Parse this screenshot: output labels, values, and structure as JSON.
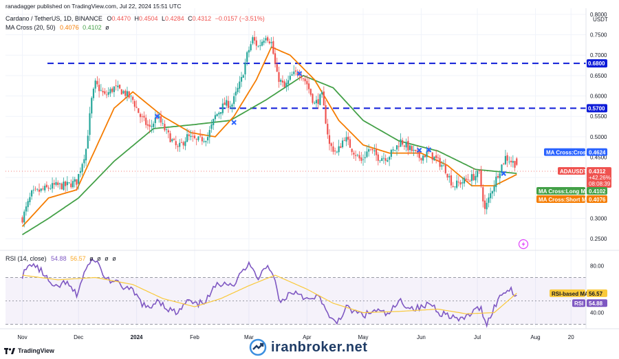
{
  "header": {
    "published": "ranadagger published on TradingView.com, Jul 22, 2024 15:51 UTC",
    "symbol_line": "Cardano / TetherUS, 1D, BINANCE",
    "ohlc": {
      "O": "0.4470",
      "H": "0.4504",
      "L": "0.4284",
      "C": "0.4312",
      "chg": "−0.0157 (−3.51%)"
    },
    "ohlc_labels": {
      "O": "O",
      "H": "H",
      "L": "L",
      "C": "C"
    },
    "indicator": "MA Cross (20, 50)",
    "indicator_values": [
      "0.4076",
      "0.4102",
      "ø"
    ]
  },
  "rsi_header": {
    "label": "RSI (14, close)",
    "values": [
      "54.88",
      "56.57",
      "ø",
      "ø",
      "ø",
      "ø"
    ]
  },
  "currency": "USDT",
  "labels": {
    "ma_cross": "MA Cross:Cross",
    "ma_cross_value": "0.4624",
    "symbol": "ADAUSDT",
    "last_price": "0.4312",
    "last_change": "+42.26%",
    "countdown": "08:08:39",
    "ma_long": "MA Cross:Long MA",
    "ma_long_value": "0.4102",
    "ma_short": "MA Cross:Short MA",
    "ma_short_value": "0.4076",
    "rsi_ma": "RSI-based MA",
    "rsi_ma_value": "56.57",
    "rsi": "RSI",
    "rsi_value": "54.88"
  },
  "levels": {
    "upper": "0.6800",
    "lower": "0.5700"
  },
  "watermark": "iranbroker.net",
  "footer": "TradingView",
  "colors": {
    "up": "#26a69a",
    "down": "#ef5350",
    "short_ma": "#f57c00",
    "long_ma": "#43a047",
    "cross": "#2962ff",
    "level": "#0d1bd8",
    "rsi": "#7e57c2",
    "rsi_ma": "#f9c93a"
  },
  "chart_data": {
    "type": "candlestick",
    "interval": "1D",
    "price_axis": {
      "ticks": [
        "0.2500",
        "0.3000",
        "0.3500",
        "0.4000",
        "0.4500",
        "0.5000",
        "0.5500",
        "0.6000",
        "0.6500",
        "0.7000",
        "0.7500",
        "0.8000"
      ],
      "range": [
        0.225,
        0.815
      ],
      "scale": "linear"
    },
    "time_axis": {
      "ticks": [
        "Nov",
        "Dec",
        "2024",
        "Feb",
        "Mar",
        "Apr",
        "May",
        "Jun",
        "Jul",
        "Aug",
        "20"
      ]
    },
    "close_anchors": [
      [
        "2023-11-01",
        0.3
      ],
      [
        "2023-11-06",
        0.36
      ],
      [
        "2023-11-12",
        0.37
      ],
      [
        "2023-11-18",
        0.38
      ],
      [
        "2023-11-24",
        0.38
      ],
      [
        "2023-11-30",
        0.39
      ],
      [
        "2023-12-05",
        0.47
      ],
      [
        "2023-12-08",
        0.59
      ],
      [
        "2023-12-10",
        0.63
      ],
      [
        "2023-12-15",
        0.6
      ],
      [
        "2023-12-20",
        0.62
      ],
      [
        "2023-12-25",
        0.61
      ],
      [
        "2023-12-30",
        0.59
      ],
      [
        "2024-01-03",
        0.55
      ],
      [
        "2024-01-08",
        0.52
      ],
      [
        "2024-01-12",
        0.55
      ],
      [
        "2024-01-17",
        0.51
      ],
      [
        "2024-01-23",
        0.47
      ],
      [
        "2024-01-28",
        0.5
      ],
      [
        "2024-02-02",
        0.49
      ],
      [
        "2024-02-08",
        0.5
      ],
      [
        "2024-02-12",
        0.55
      ],
      [
        "2024-02-17",
        0.58
      ],
      [
        "2024-02-21",
        0.58
      ],
      [
        "2024-02-26",
        0.64
      ],
      [
        "2024-02-29",
        0.7
      ],
      [
        "2024-03-03",
        0.74
      ],
      [
        "2024-03-06",
        0.72
      ],
      [
        "2024-03-10",
        0.75
      ],
      [
        "2024-03-13",
        0.73
      ],
      [
        "2024-03-16",
        0.65
      ],
      [
        "2024-03-20",
        0.62
      ],
      [
        "2024-03-24",
        0.65
      ],
      [
        "2024-03-28",
        0.66
      ],
      [
        "2024-04-01",
        0.63
      ],
      [
        "2024-04-05",
        0.58
      ],
      [
        "2024-04-09",
        0.6
      ],
      [
        "2024-04-13",
        0.48
      ],
      [
        "2024-04-17",
        0.46
      ],
      [
        "2024-04-21",
        0.5
      ],
      [
        "2024-04-25",
        0.47
      ],
      [
        "2024-04-30",
        0.44
      ],
      [
        "2024-05-04",
        0.47
      ],
      [
        "2024-05-09",
        0.45
      ],
      [
        "2024-05-14",
        0.45
      ],
      [
        "2024-05-18",
        0.47
      ],
      [
        "2024-05-21",
        0.49
      ],
      [
        "2024-05-26",
        0.47
      ],
      [
        "2024-05-31",
        0.45
      ],
      [
        "2024-06-05",
        0.46
      ],
      [
        "2024-06-10",
        0.44
      ],
      [
        "2024-06-14",
        0.42
      ],
      [
        "2024-06-18",
        0.38
      ],
      [
        "2024-06-23",
        0.39
      ],
      [
        "2024-06-28",
        0.4
      ],
      [
        "2024-07-02",
        0.41
      ],
      [
        "2024-07-05",
        0.32
      ],
      [
        "2024-07-08",
        0.36
      ],
      [
        "2024-07-12",
        0.41
      ],
      [
        "2024-07-16",
        0.45
      ],
      [
        "2024-07-19",
        0.44
      ],
      [
        "2024-07-22",
        0.4312
      ]
    ],
    "short_ma_anchors": [
      [
        "2023-11-01",
        0.28
      ],
      [
        "2023-11-15",
        0.35
      ],
      [
        "2023-11-30",
        0.37
      ],
      [
        "2023-12-10",
        0.47
      ],
      [
        "2023-12-20",
        0.57
      ],
      [
        "2023-12-30",
        0.61
      ],
      [
        "2024-01-15",
        0.55
      ],
      [
        "2024-01-30",
        0.51
      ],
      [
        "2024-02-12",
        0.5
      ],
      [
        "2024-02-22",
        0.55
      ],
      [
        "2024-03-05",
        0.64
      ],
      [
        "2024-03-13",
        0.72
      ],
      [
        "2024-03-23",
        0.7
      ],
      [
        "2024-04-05",
        0.64
      ],
      [
        "2024-04-18",
        0.54
      ],
      [
        "2024-05-01",
        0.48
      ],
      [
        "2024-05-15",
        0.46
      ],
      [
        "2024-06-01",
        0.46
      ],
      [
        "2024-06-15",
        0.43
      ],
      [
        "2024-06-28",
        0.38
      ],
      [
        "2024-07-10",
        0.38
      ],
      [
        "2024-07-22",
        0.4076
      ]
    ],
    "long_ma_anchors": [
      [
        "2023-11-01",
        0.26
      ],
      [
        "2023-11-15",
        0.3
      ],
      [
        "2023-12-01",
        0.35
      ],
      [
        "2023-12-20",
        0.44
      ],
      [
        "2024-01-10",
        0.52
      ],
      [
        "2024-02-01",
        0.53
      ],
      [
        "2024-02-20",
        0.54
      ],
      [
        "2024-03-10",
        0.59
      ],
      [
        "2024-03-30",
        0.65
      ],
      [
        "2024-04-15",
        0.62
      ],
      [
        "2024-05-01",
        0.54
      ],
      [
        "2024-05-20",
        0.49
      ],
      [
        "2024-06-10",
        0.465
      ],
      [
        "2024-06-30",
        0.42
      ],
      [
        "2024-07-22",
        0.4102
      ]
    ],
    "cross_markers": [
      [
        "2024-01-12",
        0.55
      ],
      [
        "2024-02-22",
        0.535
      ],
      [
        "2024-03-28",
        0.655
      ],
      [
        "2024-05-31",
        0.467
      ],
      [
        "2024-06-05",
        0.468
      ],
      [
        "2024-07-15",
        0.41
      ]
    ],
    "horizontal_levels": [
      0.68,
      0.57
    ],
    "rsi": {
      "axis_ticks": [
        "40.00",
        "80.00"
      ],
      "range": [
        28,
        92
      ],
      "band": [
        30,
        70
      ],
      "anchors": [
        [
          "2023-11-01",
          72
        ],
        [
          "2023-11-06",
          82
        ],
        [
          "2023-11-12",
          74
        ],
        [
          "2023-11-18",
          60
        ],
        [
          "2023-11-24",
          66
        ],
        [
          "2023-11-30",
          55
        ],
        [
          "2023-12-05",
          78
        ],
        [
          "2023-12-10",
          86
        ],
        [
          "2023-12-15",
          70
        ],
        [
          "2023-12-20",
          66
        ],
        [
          "2023-12-25",
          62
        ],
        [
          "2023-12-30",
          58
        ],
        [
          "2024-01-04",
          48
        ],
        [
          "2024-01-08",
          42
        ],
        [
          "2024-01-12",
          52
        ],
        [
          "2024-01-17",
          44
        ],
        [
          "2024-01-23",
          39
        ],
        [
          "2024-01-28",
          50
        ],
        [
          "2024-02-02",
          46
        ],
        [
          "2024-02-08",
          52
        ],
        [
          "2024-02-12",
          62
        ],
        [
          "2024-02-17",
          67
        ],
        [
          "2024-02-22",
          64
        ],
        [
          "2024-02-27",
          76
        ],
        [
          "2024-03-02",
          82
        ],
        [
          "2024-03-06",
          70
        ],
        [
          "2024-03-10",
          80
        ],
        [
          "2024-03-14",
          72
        ],
        [
          "2024-03-18",
          48
        ],
        [
          "2024-03-22",
          56
        ],
        [
          "2024-03-27",
          58
        ],
        [
          "2024-04-02",
          50
        ],
        [
          "2024-04-08",
          54
        ],
        [
          "2024-04-13",
          34
        ],
        [
          "2024-04-17",
          32
        ],
        [
          "2024-04-22",
          44
        ],
        [
          "2024-04-27",
          40
        ],
        [
          "2024-05-02",
          38
        ],
        [
          "2024-05-08",
          42
        ],
        [
          "2024-05-14",
          38
        ],
        [
          "2024-05-21",
          50
        ],
        [
          "2024-05-26",
          44
        ],
        [
          "2024-06-01",
          44
        ],
        [
          "2024-06-06",
          48
        ],
        [
          "2024-06-11",
          40
        ],
        [
          "2024-06-16",
          38
        ],
        [
          "2024-06-22",
          33
        ],
        [
          "2024-06-28",
          40
        ],
        [
          "2024-07-03",
          44
        ],
        [
          "2024-07-06",
          30
        ],
        [
          "2024-07-10",
          45
        ],
        [
          "2024-07-15",
          58
        ],
        [
          "2024-07-19",
          60
        ],
        [
          "2024-07-22",
          54.88
        ]
      ],
      "ma_anchors": [
        [
          "2023-11-01",
          72
        ],
        [
          "2023-11-20",
          68
        ],
        [
          "2023-12-10",
          70
        ],
        [
          "2023-12-30",
          64
        ],
        [
          "2024-01-15",
          52
        ],
        [
          "2024-02-01",
          45
        ],
        [
          "2024-02-15",
          52
        ],
        [
          "2024-03-01",
          63
        ],
        [
          "2024-03-15",
          72
        ],
        [
          "2024-04-01",
          60
        ],
        [
          "2024-04-15",
          48
        ],
        [
          "2024-05-01",
          40
        ],
        [
          "2024-05-20",
          41
        ],
        [
          "2024-06-10",
          43
        ],
        [
          "2024-06-25",
          39
        ],
        [
          "2024-07-10",
          40
        ],
        [
          "2024-07-22",
          56.57
        ]
      ]
    }
  }
}
